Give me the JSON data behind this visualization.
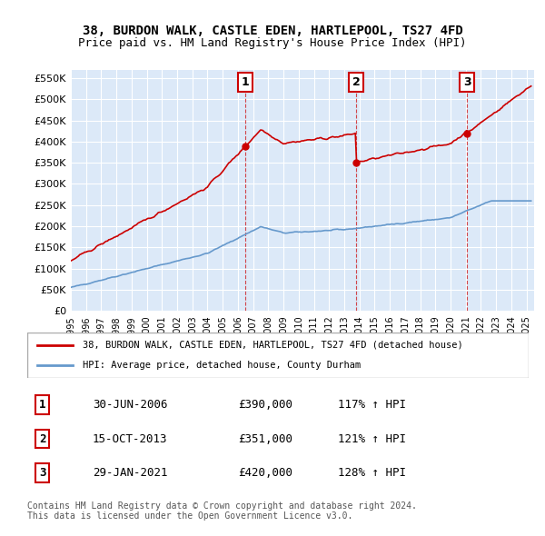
{
  "title1": "38, BURDON WALK, CASTLE EDEN, HARTLEPOOL, TS27 4FD",
  "title2": "Price paid vs. HM Land Registry's House Price Index (HPI)",
  "legend_red": "38, BURDON WALK, CASTLE EDEN, HARTLEPOOL, TS27 4FD (detached house)",
  "legend_blue": "HPI: Average price, detached house, County Durham",
  "sale_dates": [
    "30-JUN-2006",
    "15-OCT-2013",
    "29-JAN-2021"
  ],
  "sale_prices": [
    390000,
    351000,
    420000
  ],
  "sale_hpi_pct": [
    "117% ↑ HPI",
    "121% ↑ HPI",
    "128% ↑ HPI"
  ],
  "sale_years": [
    2006.5,
    2013.79,
    2021.08
  ],
  "footer": "Contains HM Land Registry data © Crown copyright and database right 2024.\nThis data is licensed under the Open Government Licence v3.0.",
  "bg_color": "#dce9f8",
  "plot_bg": "#dce9f8",
  "red_color": "#cc0000",
  "blue_color": "#6699cc",
  "ylim": [
    0,
    570000
  ],
  "xlim_start": 1995.0,
  "xlim_end": 2025.5
}
